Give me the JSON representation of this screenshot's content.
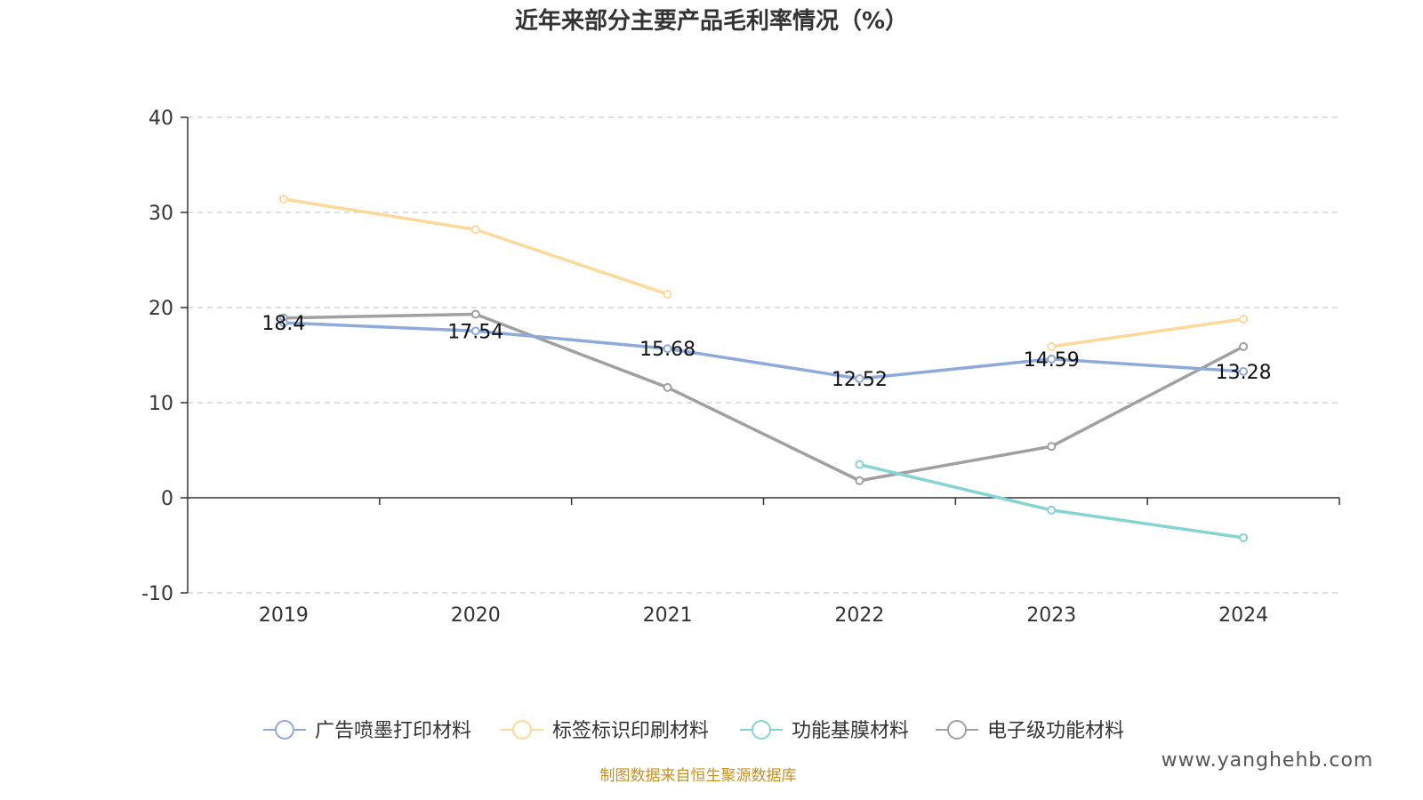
{
  "chart_data": {
    "type": "line",
    "title": "近年来部分主要产品毛利率情况（%）",
    "categories": [
      "2019",
      "2020",
      "2021",
      "2022",
      "2023",
      "2024"
    ],
    "ylim": [
      -10,
      40
    ],
    "yticks": [
      40,
      30,
      20,
      10,
      0,
      -10
    ],
    "grid": true,
    "legend_position": "bottom-center",
    "series": [
      {
        "name": "广告喷墨打印材料",
        "color": "#8eaadb",
        "values": [
          18.4,
          17.54,
          15.68,
          12.52,
          14.59,
          13.28
        ],
        "labels": [
          "18.4",
          "17.54",
          "15.68",
          "12.52",
          "14.59",
          "13.28"
        ]
      },
      {
        "name": "标签标识印刷材料",
        "color": "#fcd999",
        "values": [
          31.4,
          28.2,
          21.4,
          null,
          15.9,
          18.8
        ],
        "labels": null
      },
      {
        "name": "功能基膜材料",
        "color": "#86d3d3",
        "values": [
          null,
          null,
          null,
          3.5,
          -1.3,
          -4.2
        ],
        "labels": null
      },
      {
        "name": "电子级功能材料",
        "color": "#a0a0a0",
        "values": [
          18.9,
          19.3,
          11.6,
          1.8,
          5.4,
          15.9
        ],
        "labels": null
      }
    ]
  },
  "source_note": "制图数据来自恒生聚源数据库",
  "watermark": "www.yanghehb.com"
}
